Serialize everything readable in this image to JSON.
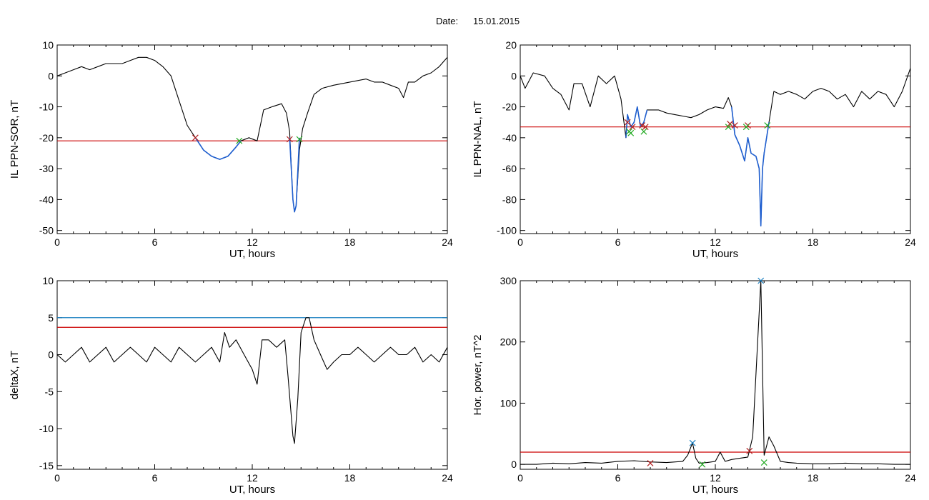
{
  "header": {
    "date_label": "Date:",
    "date_value": "15.01.2015"
  },
  "colors": {
    "trace": "#000000",
    "threshold": "#cc0000",
    "threshold2": "#1a7fc1",
    "event": "#1f5fd0",
    "marker_start": "#b22222",
    "marker_end": "#22aa22",
    "marker_peak": "#1a7fc1"
  },
  "chart_data": [
    {
      "id": "sor",
      "type": "line",
      "title": "",
      "xlabel": "UT, hours",
      "ylabel": "IL PPN-SOR, nT",
      "xlim": [
        0,
        24
      ],
      "ylim": [
        -51,
        10
      ],
      "xticks": [
        0,
        6,
        12,
        18,
        24
      ],
      "yticks": [
        10,
        0,
        -10,
        -20,
        -30,
        -40,
        -50
      ],
      "grid": false,
      "series": [
        {
          "role": "trace",
          "x": [
            0,
            0.5,
            1,
            1.5,
            2,
            2.5,
            3,
            3.5,
            4,
            4.5,
            5,
            5.5,
            6,
            6.5,
            7,
            7.5,
            8,
            8.5,
            9,
            9.5,
            10,
            10.5,
            11,
            11.3,
            11.8,
            12.3,
            12.7,
            13.2,
            13.8,
            14.1,
            14.3,
            14.5,
            14.6,
            14.7,
            14.9,
            15.1,
            15.4,
            15.8,
            16.3,
            17,
            18,
            19,
            19.5,
            20,
            20.5,
            21,
            21.3,
            21.6,
            22,
            22.5,
            23,
            23.5,
            24
          ],
          "y": [
            0,
            1,
            2,
            3,
            2,
            3,
            4,
            4,
            4,
            5,
            6,
            6,
            5,
            3,
            0,
            -8,
            -16,
            -20,
            -24,
            -26,
            -27,
            -26,
            -23,
            -21,
            -20,
            -21,
            -11,
            -10,
            -9,
            -12,
            -18,
            -40,
            -44,
            -42,
            -24,
            -17,
            -12,
            -6,
            -4,
            -3,
            -2,
            -1,
            -2,
            -2,
            -3,
            -4,
            -7,
            -2,
            -2,
            0,
            1,
            3,
            6
          ]
        },
        {
          "role": "event",
          "x": [
            8.5,
            9,
            9.5,
            10,
            10.5,
            11,
            11.3
          ],
          "y": [
            -20,
            -24,
            -26,
            -27,
            -26,
            -23,
            -21
          ]
        },
        {
          "role": "event",
          "x": [
            14.3,
            14.5,
            14.6,
            14.7,
            14.9
          ],
          "y": [
            -20,
            -40,
            -44,
            -42,
            -20
          ]
        }
      ],
      "thresholds": [
        {
          "y": -21,
          "color": "#cc0000"
        }
      ],
      "markers": [
        {
          "x": 8.5,
          "y": -20,
          "kind": "start"
        },
        {
          "x": 11.2,
          "y": -21,
          "kind": "end"
        },
        {
          "x": 14.3,
          "y": -20.5,
          "kind": "start"
        },
        {
          "x": 14.9,
          "y": -20.5,
          "kind": "end"
        }
      ]
    },
    {
      "id": "nal",
      "type": "line",
      "title": "",
      "xlabel": "UT, hours",
      "ylabel": "IL PPN-NAL, nT",
      "xlim": [
        0,
        24
      ],
      "ylim": [
        -102,
        20
      ],
      "xticks": [
        0,
        6,
        12,
        18,
        24
      ],
      "yticks": [
        20,
        0,
        -20,
        -40,
        -60,
        -80,
        -100
      ],
      "grid": false,
      "series": [
        {
          "role": "trace",
          "x": [
            0,
            0.3,
            0.8,
            1.5,
            2,
            2.5,
            3,
            3.3,
            3.8,
            4.3,
            4.8,
            5.3,
            5.8,
            6.2,
            6.5,
            6.6,
            6.8,
            7,
            7.2,
            7.4,
            7.6,
            7.8,
            8,
            8.5,
            9,
            9.5,
            10,
            10.5,
            11,
            11.5,
            12,
            12.5,
            12.8,
            13,
            13.2,
            13.5,
            13.8,
            14,
            14.2,
            14.5,
            14.7,
            14.8,
            14.9,
            15,
            15.3,
            15.6,
            16,
            16.5,
            17,
            17.5,
            18,
            18.5,
            19,
            19.5,
            20,
            20.5,
            21,
            21.5,
            22,
            22.5,
            23,
            23.5,
            24
          ],
          "y": [
            0,
            -8,
            2,
            0,
            -8,
            -12,
            -22,
            -5,
            -5,
            -20,
            0,
            -5,
            0,
            -15,
            -40,
            -25,
            -33,
            -30,
            -20,
            -33,
            -30,
            -22,
            -22,
            -22,
            -24,
            -25,
            -26,
            -27,
            -25,
            -22,
            -20,
            -21,
            -14,
            -20,
            -38,
            -45,
            -55,
            -40,
            -50,
            -52,
            -60,
            -97,
            -60,
            -50,
            -30,
            -10,
            -12,
            -10,
            -12,
            -15,
            -10,
            -8,
            -10,
            -15,
            -12,
            -20,
            -10,
            -15,
            -10,
            -12,
            -20,
            -10,
            5
          ]
        },
        {
          "role": "event",
          "x": [
            6.5,
            6.6,
            6.8,
            7,
            7.2,
            7.4,
            7.6,
            7.8
          ],
          "y": [
            -40,
            -25,
            -33,
            -30,
            -20,
            -33,
            -30,
            -22
          ]
        },
        {
          "role": "event",
          "x": [
            13,
            13.2,
            13.5,
            13.8,
            14,
            14.2,
            14.5,
            14.7,
            14.8,
            14.9,
            15,
            15.3
          ],
          "y": [
            -20,
            -38,
            -45,
            -55,
            -40,
            -50,
            -52,
            -60,
            -97,
            -60,
            -50,
            -30
          ]
        }
      ],
      "thresholds": [
        {
          "y": -33,
          "color": "#cc0000"
        }
      ],
      "markers": [
        {
          "x": 6.6,
          "y": -30,
          "kind": "start"
        },
        {
          "x": 6.9,
          "y": -33,
          "kind": "start"
        },
        {
          "x": 7.5,
          "y": -32,
          "kind": "start"
        },
        {
          "x": 7.7,
          "y": -33,
          "kind": "start"
        },
        {
          "x": 6.7,
          "y": -36,
          "kind": "end"
        },
        {
          "x": 6.8,
          "y": -37,
          "kind": "end"
        },
        {
          "x": 7.6,
          "y": -36,
          "kind": "end"
        },
        {
          "x": 12.9,
          "y": -31,
          "kind": "start"
        },
        {
          "x": 13.2,
          "y": -32,
          "kind": "start"
        },
        {
          "x": 14.0,
          "y": -32,
          "kind": "start"
        },
        {
          "x": 12.8,
          "y": -33,
          "kind": "end"
        },
        {
          "x": 13.9,
          "y": -33,
          "kind": "end"
        },
        {
          "x": 15.2,
          "y": -32,
          "kind": "end"
        }
      ]
    },
    {
      "id": "deltax",
      "type": "line",
      "title": "",
      "xlabel": "UT, hours",
      "ylabel": "deltaX, nT",
      "xlim": [
        0,
        24
      ],
      "ylim": [
        -15.5,
        10
      ],
      "xticks": [
        0,
        6,
        12,
        18,
        24
      ],
      "yticks": [
        10,
        5,
        0,
        -5,
        -10,
        -15
      ],
      "grid": false,
      "series": [
        {
          "role": "trace",
          "x": [
            0,
            0.5,
            1,
            1.5,
            2,
            2.5,
            3,
            3.5,
            4,
            4.5,
            5,
            5.5,
            6,
            6.5,
            7,
            7.5,
            8,
            8.5,
            9,
            9.5,
            10,
            10.3,
            10.6,
            11,
            11.5,
            12,
            12.3,
            12.6,
            13,
            13.5,
            14,
            14.2,
            14.5,
            14.6,
            14.8,
            15,
            15.3,
            15.5,
            15.8,
            16.2,
            16.6,
            17,
            17.5,
            18,
            18.5,
            19,
            19.5,
            20,
            20.5,
            21,
            21.5,
            22,
            22.5,
            23,
            23.5,
            24
          ],
          "y": [
            0,
            -1,
            0,
            1,
            -1,
            0,
            1,
            -1,
            0,
            1,
            0,
            -1,
            1,
            0,
            -1,
            1,
            0,
            -1,
            0,
            1,
            -1,
            3,
            1,
            2,
            0,
            -2,
            -4,
            2,
            2,
            1,
            2,
            -3,
            -11,
            -12,
            -6,
            3,
            5,
            5,
            2,
            0,
            -2,
            -1,
            0,
            0,
            1,
            0,
            -1,
            0,
            1,
            0,
            0,
            1,
            -1,
            0,
            -1,
            1
          ]
        }
      ],
      "thresholds": [
        {
          "y": 5,
          "color": "#1a7fc1"
        },
        {
          "y": 3.7,
          "color": "#cc0000"
        }
      ],
      "markers": []
    },
    {
      "id": "power",
      "type": "line",
      "title": "",
      "xlabel": "UT, hours",
      "ylabel": "Hor. power, nT^2",
      "xlim": [
        0,
        24
      ],
      "ylim": [
        -8,
        300
      ],
      "xticks": [
        0,
        6,
        12,
        18,
        24
      ],
      "yticks": [
        300,
        200,
        100,
        0
      ],
      "grid": false,
      "series": [
        {
          "role": "trace",
          "x": [
            0,
            1,
            2,
            3,
            4,
            5,
            6,
            7,
            8,
            9,
            10,
            10.3,
            10.6,
            10.8,
            11,
            11.5,
            12,
            12.3,
            12.6,
            13,
            13.5,
            14,
            14.3,
            14.6,
            14.8,
            15,
            15.3,
            15.6,
            16,
            16.5,
            17,
            18,
            19,
            20,
            21,
            22,
            23,
            24
          ],
          "y": [
            0,
            0,
            2,
            1,
            3,
            2,
            5,
            6,
            4,
            3,
            5,
            15,
            35,
            10,
            2,
            3,
            5,
            20,
            5,
            8,
            10,
            12,
            45,
            200,
            300,
            15,
            45,
            30,
            5,
            3,
            2,
            1,
            1,
            2,
            1,
            1,
            0,
            0
          ]
        }
      ],
      "thresholds": [
        {
          "y": 20,
          "color": "#cc0000"
        }
      ],
      "markers": [
        {
          "x": 8.0,
          "y": 2,
          "kind": "start"
        },
        {
          "x": 10.6,
          "y": 35,
          "kind": "peak"
        },
        {
          "x": 11.2,
          "y": 0,
          "kind": "end"
        },
        {
          "x": 14.1,
          "y": 22,
          "kind": "start"
        },
        {
          "x": 14.8,
          "y": 300,
          "kind": "peak"
        },
        {
          "x": 15.0,
          "y": 3,
          "kind": "end"
        }
      ]
    }
  ]
}
